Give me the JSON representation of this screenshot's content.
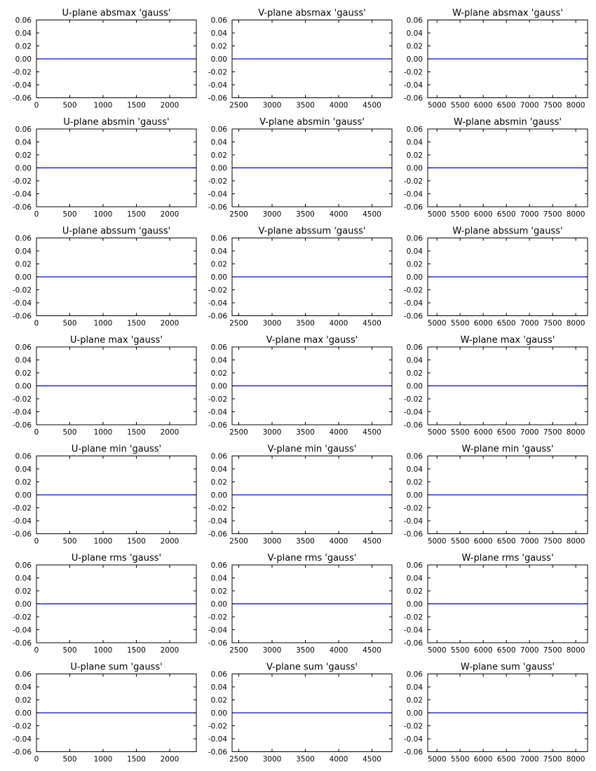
{
  "chart_data": [
    {
      "type": "line",
      "title": "U-plane absmax 'gauss'",
      "xlim": [
        0,
        2400
      ],
      "xticks": [
        0,
        500,
        1000,
        1500,
        2000
      ],
      "ylim": [
        -0.06,
        0.06
      ],
      "yticks": [
        0.06,
        0.04,
        0.02,
        0.0,
        -0.02,
        -0.04,
        -0.06
      ],
      "ytick_labels": [
        "0.06",
        "0.04",
        "0.02",
        "0.00",
        "-0.02",
        "-0.04",
        "-0.06"
      ],
      "series": [
        {
          "x": [
            0,
            2400
          ],
          "y": [
            0,
            0
          ],
          "color": "#0000ff"
        }
      ]
    },
    {
      "type": "line",
      "title": "V-plane absmax 'gauss'",
      "xlim": [
        2400,
        4800
      ],
      "xticks": [
        2500,
        3000,
        3500,
        4000,
        4500
      ],
      "ylim": [
        -0.06,
        0.06
      ],
      "yticks": [
        0.06,
        0.04,
        0.02,
        0.0,
        -0.02,
        -0.04,
        -0.06
      ],
      "ytick_labels": [
        "0.06",
        "0.04",
        "0.02",
        "0.00",
        "-0.02",
        "-0.04",
        "-0.06"
      ],
      "series": [
        {
          "x": [
            2400,
            4800
          ],
          "y": [
            0,
            0
          ],
          "color": "#0000ff"
        }
      ]
    },
    {
      "type": "line",
      "title": "W-plane absmax 'gauss'",
      "xlim": [
        4800,
        8256
      ],
      "xticks": [
        5000,
        5500,
        6000,
        6500,
        7000,
        7500,
        8000
      ],
      "ylim": [
        -0.06,
        0.06
      ],
      "yticks": [
        0.06,
        0.04,
        0.02,
        0.0,
        -0.02,
        -0.04,
        -0.06
      ],
      "ytick_labels": [
        "0.06",
        "0.04",
        "0.02",
        "0.00",
        "-0.02",
        "-0.04",
        "-0.06"
      ],
      "series": [
        {
          "x": [
            4800,
            8256
          ],
          "y": [
            0,
            0
          ],
          "color": "#0000ff"
        }
      ]
    },
    {
      "type": "line",
      "title": "U-plane absmin 'gauss'",
      "xlim": [
        0,
        2400
      ],
      "xticks": [
        0,
        500,
        1000,
        1500,
        2000
      ],
      "ylim": [
        -0.06,
        0.06
      ],
      "yticks": [
        0.06,
        0.04,
        0.02,
        0.0,
        -0.02,
        -0.04,
        -0.06
      ],
      "ytick_labels": [
        "0.06",
        "0.04",
        "0.02",
        "0.00",
        "-0.02",
        "-0.04",
        "-0.06"
      ],
      "series": [
        {
          "x": [
            0,
            2400
          ],
          "y": [
            0,
            0
          ],
          "color": "#0000ff"
        }
      ]
    },
    {
      "type": "line",
      "title": "V-plane absmin 'gauss'",
      "xlim": [
        2400,
        4800
      ],
      "xticks": [
        2500,
        3000,
        3500,
        4000,
        4500
      ],
      "ylim": [
        -0.06,
        0.06
      ],
      "yticks": [
        0.06,
        0.04,
        0.02,
        0.0,
        -0.02,
        -0.04,
        -0.06
      ],
      "ytick_labels": [
        "0.06",
        "0.04",
        "0.02",
        "0.00",
        "-0.02",
        "-0.04",
        "-0.06"
      ],
      "series": [
        {
          "x": [
            2400,
            4800
          ],
          "y": [
            0,
            0
          ],
          "color": "#0000ff"
        }
      ]
    },
    {
      "type": "line",
      "title": "W-plane absmin 'gauss'",
      "xlim": [
        4800,
        8256
      ],
      "xticks": [
        5000,
        5500,
        6000,
        6500,
        7000,
        7500,
        8000
      ],
      "ylim": [
        -0.06,
        0.06
      ],
      "yticks": [
        0.06,
        0.04,
        0.02,
        0.0,
        -0.02,
        -0.04,
        -0.06
      ],
      "ytick_labels": [
        "0.06",
        "0.04",
        "0.02",
        "0.00",
        "-0.02",
        "-0.04",
        "-0.06"
      ],
      "series": [
        {
          "x": [
            4800,
            8256
          ],
          "y": [
            0,
            0
          ],
          "color": "#0000ff"
        }
      ]
    },
    {
      "type": "line",
      "title": "U-plane abssum 'gauss'",
      "xlim": [
        0,
        2400
      ],
      "xticks": [
        0,
        500,
        1000,
        1500,
        2000
      ],
      "ylim": [
        -0.06,
        0.06
      ],
      "yticks": [
        0.06,
        0.04,
        0.02,
        0.0,
        -0.02,
        -0.04,
        -0.06
      ],
      "ytick_labels": [
        "0.06",
        "0.04",
        "0.02",
        "0.00",
        "-0.02",
        "-0.04",
        "-0.06"
      ],
      "series": [
        {
          "x": [
            0,
            2400
          ],
          "y": [
            0,
            0
          ],
          "color": "#0000ff"
        }
      ]
    },
    {
      "type": "line",
      "title": "V-plane abssum 'gauss'",
      "xlim": [
        2400,
        4800
      ],
      "xticks": [
        2500,
        3000,
        3500,
        4000,
        4500
      ],
      "ylim": [
        -0.06,
        0.06
      ],
      "yticks": [
        0.06,
        0.04,
        0.02,
        0.0,
        -0.02,
        -0.04,
        -0.06
      ],
      "ytick_labels": [
        "0.06",
        "0.04",
        "0.02",
        "0.00",
        "-0.02",
        "-0.04",
        "-0.06"
      ],
      "series": [
        {
          "x": [
            2400,
            4800
          ],
          "y": [
            0,
            0
          ],
          "color": "#0000ff"
        }
      ]
    },
    {
      "type": "line",
      "title": "W-plane abssum 'gauss'",
      "xlim": [
        4800,
        8256
      ],
      "xticks": [
        5000,
        5500,
        6000,
        6500,
        7000,
        7500,
        8000
      ],
      "ylim": [
        -0.06,
        0.06
      ],
      "yticks": [
        0.06,
        0.04,
        0.02,
        0.0,
        -0.02,
        -0.04,
        -0.06
      ],
      "ytick_labels": [
        "0.06",
        "0.04",
        "0.02",
        "0.00",
        "-0.02",
        "-0.04",
        "-0.06"
      ],
      "series": [
        {
          "x": [
            4800,
            8256
          ],
          "y": [
            0,
            0
          ],
          "color": "#0000ff"
        }
      ]
    },
    {
      "type": "line",
      "title": "U-plane max 'gauss'",
      "xlim": [
        0,
        2400
      ],
      "xticks": [
        0,
        500,
        1000,
        1500,
        2000
      ],
      "ylim": [
        -0.06,
        0.06
      ],
      "yticks": [
        0.06,
        0.04,
        0.02,
        0.0,
        -0.02,
        -0.04,
        -0.06
      ],
      "ytick_labels": [
        "0.06",
        "0.04",
        "0.02",
        "0.00",
        "-0.02",
        "-0.04",
        "-0.06"
      ],
      "series": [
        {
          "x": [
            0,
            2400
          ],
          "y": [
            0,
            0
          ],
          "color": "#0000ff"
        }
      ]
    },
    {
      "type": "line",
      "title": "V-plane max 'gauss'",
      "xlim": [
        2400,
        4800
      ],
      "xticks": [
        2500,
        3000,
        3500,
        4000,
        4500
      ],
      "ylim": [
        -0.06,
        0.06
      ],
      "yticks": [
        0.06,
        0.04,
        0.02,
        0.0,
        -0.02,
        -0.04,
        -0.06
      ],
      "ytick_labels": [
        "0.06",
        "0.04",
        "0.02",
        "0.00",
        "-0.02",
        "-0.04",
        "-0.06"
      ],
      "series": [
        {
          "x": [
            2400,
            4800
          ],
          "y": [
            0,
            0
          ],
          "color": "#0000ff"
        }
      ]
    },
    {
      "type": "line",
      "title": "W-plane max 'gauss'",
      "xlim": [
        4800,
        8256
      ],
      "xticks": [
        5000,
        5500,
        6000,
        6500,
        7000,
        7500,
        8000
      ],
      "ylim": [
        -0.06,
        0.06
      ],
      "yticks": [
        0.06,
        0.04,
        0.02,
        0.0,
        -0.02,
        -0.04,
        -0.06
      ],
      "ytick_labels": [
        "0.06",
        "0.04",
        "0.02",
        "0.00",
        "-0.02",
        "-0.04",
        "-0.06"
      ],
      "series": [
        {
          "x": [
            4800,
            8256
          ],
          "y": [
            0,
            0
          ],
          "color": "#0000ff"
        }
      ]
    },
    {
      "type": "line",
      "title": "U-plane min 'gauss'",
      "xlim": [
        0,
        2400
      ],
      "xticks": [
        0,
        500,
        1000,
        1500,
        2000
      ],
      "ylim": [
        -0.06,
        0.06
      ],
      "yticks": [
        0.06,
        0.04,
        0.02,
        0.0,
        -0.02,
        -0.04,
        -0.06
      ],
      "ytick_labels": [
        "0.06",
        "0.04",
        "0.02",
        "0.00",
        "-0.02",
        "-0.04",
        "-0.06"
      ],
      "series": [
        {
          "x": [
            0,
            2400
          ],
          "y": [
            0,
            0
          ],
          "color": "#0000ff"
        }
      ]
    },
    {
      "type": "line",
      "title": "V-plane min 'gauss'",
      "xlim": [
        2400,
        4800
      ],
      "xticks": [
        2500,
        3000,
        3500,
        4000,
        4500
      ],
      "ylim": [
        -0.06,
        0.06
      ],
      "yticks": [
        0.06,
        0.04,
        0.02,
        0.0,
        -0.02,
        -0.04,
        -0.06
      ],
      "ytick_labels": [
        "0.06",
        "0.04",
        "0.02",
        "0.00",
        "-0.02",
        "-0.04",
        "-0.06"
      ],
      "series": [
        {
          "x": [
            2400,
            4800
          ],
          "y": [
            0,
            0
          ],
          "color": "#0000ff"
        }
      ]
    },
    {
      "type": "line",
      "title": "W-plane min 'gauss'",
      "xlim": [
        4800,
        8256
      ],
      "xticks": [
        5000,
        5500,
        6000,
        6500,
        7000,
        7500,
        8000
      ],
      "ylim": [
        -0.06,
        0.06
      ],
      "yticks": [
        0.06,
        0.04,
        0.02,
        0.0,
        -0.02,
        -0.04,
        -0.06
      ],
      "ytick_labels": [
        "0.06",
        "0.04",
        "0.02",
        "0.00",
        "-0.02",
        "-0.04",
        "-0.06"
      ],
      "series": [
        {
          "x": [
            4800,
            8256
          ],
          "y": [
            0,
            0
          ],
          "color": "#0000ff"
        }
      ]
    },
    {
      "type": "line",
      "title": "U-plane rms 'gauss'",
      "xlim": [
        0,
        2400
      ],
      "xticks": [
        0,
        500,
        1000,
        1500,
        2000
      ],
      "ylim": [
        -0.06,
        0.06
      ],
      "yticks": [
        0.06,
        0.04,
        0.02,
        0.0,
        -0.02,
        -0.04,
        -0.06
      ],
      "ytick_labels": [
        "0.06",
        "0.04",
        "0.02",
        "0.00",
        "-0.02",
        "-0.04",
        "-0.06"
      ],
      "series": [
        {
          "x": [
            0,
            2400
          ],
          "y": [
            0,
            0
          ],
          "color": "#0000ff"
        }
      ]
    },
    {
      "type": "line",
      "title": "V-plane rms 'gauss'",
      "xlim": [
        2400,
        4800
      ],
      "xticks": [
        2500,
        3000,
        3500,
        4000,
        4500
      ],
      "ylim": [
        -0.06,
        0.06
      ],
      "yticks": [
        0.06,
        0.04,
        0.02,
        0.0,
        -0.02,
        -0.04,
        -0.06
      ],
      "ytick_labels": [
        "0.06",
        "0.04",
        "0.02",
        "0.00",
        "-0.02",
        "-0.04",
        "-0.06"
      ],
      "series": [
        {
          "x": [
            2400,
            4800
          ],
          "y": [
            0,
            0
          ],
          "color": "#0000ff"
        }
      ]
    },
    {
      "type": "line",
      "title": "W-plane rms 'gauss'",
      "xlim": [
        4800,
        8256
      ],
      "xticks": [
        5000,
        5500,
        6000,
        6500,
        7000,
        7500,
        8000
      ],
      "ylim": [
        -0.06,
        0.06
      ],
      "yticks": [
        0.06,
        0.04,
        0.02,
        0.0,
        -0.02,
        -0.04,
        -0.06
      ],
      "ytick_labels": [
        "0.06",
        "0.04",
        "0.02",
        "0.00",
        "-0.02",
        "-0.04",
        "-0.06"
      ],
      "series": [
        {
          "x": [
            4800,
            8256
          ],
          "y": [
            0,
            0
          ],
          "color": "#0000ff"
        }
      ]
    },
    {
      "type": "line",
      "title": "U-plane sum 'gauss'",
      "xlim": [
        0,
        2400
      ],
      "xticks": [
        0,
        500,
        1000,
        1500,
        2000
      ],
      "ylim": [
        -0.06,
        0.06
      ],
      "yticks": [
        0.06,
        0.04,
        0.02,
        0.0,
        -0.02,
        -0.04,
        -0.06
      ],
      "ytick_labels": [
        "0.06",
        "0.04",
        "0.02",
        "0.00",
        "-0.02",
        "-0.04",
        "-0.06"
      ],
      "series": [
        {
          "x": [
            0,
            2400
          ],
          "y": [
            0,
            0
          ],
          "color": "#0000ff"
        }
      ]
    },
    {
      "type": "line",
      "title": "V-plane sum 'gauss'",
      "xlim": [
        2400,
        4800
      ],
      "xticks": [
        2500,
        3000,
        3500,
        4000,
        4500
      ],
      "ylim": [
        -0.06,
        0.06
      ],
      "yticks": [
        0.06,
        0.04,
        0.02,
        0.0,
        -0.02,
        -0.04,
        -0.06
      ],
      "ytick_labels": [
        "0.06",
        "0.04",
        "0.02",
        "0.00",
        "-0.02",
        "-0.04",
        "-0.06"
      ],
      "series": [
        {
          "x": [
            2400,
            4800
          ],
          "y": [
            0,
            0
          ],
          "color": "#0000ff"
        }
      ]
    },
    {
      "type": "line",
      "title": "W-plane sum 'gauss'",
      "xlim": [
        4800,
        8256
      ],
      "xticks": [
        5000,
        5500,
        6000,
        6500,
        7000,
        7500,
        8000
      ],
      "ylim": [
        -0.06,
        0.06
      ],
      "yticks": [
        0.06,
        0.04,
        0.02,
        0.0,
        -0.02,
        -0.04,
        -0.06
      ],
      "ytick_labels": [
        "0.06",
        "0.04",
        "0.02",
        "0.00",
        "-0.02",
        "-0.04",
        "-0.06"
      ],
      "series": [
        {
          "x": [
            4800,
            8256
          ],
          "y": [
            0,
            0
          ],
          "color": "#0000ff"
        }
      ]
    }
  ]
}
